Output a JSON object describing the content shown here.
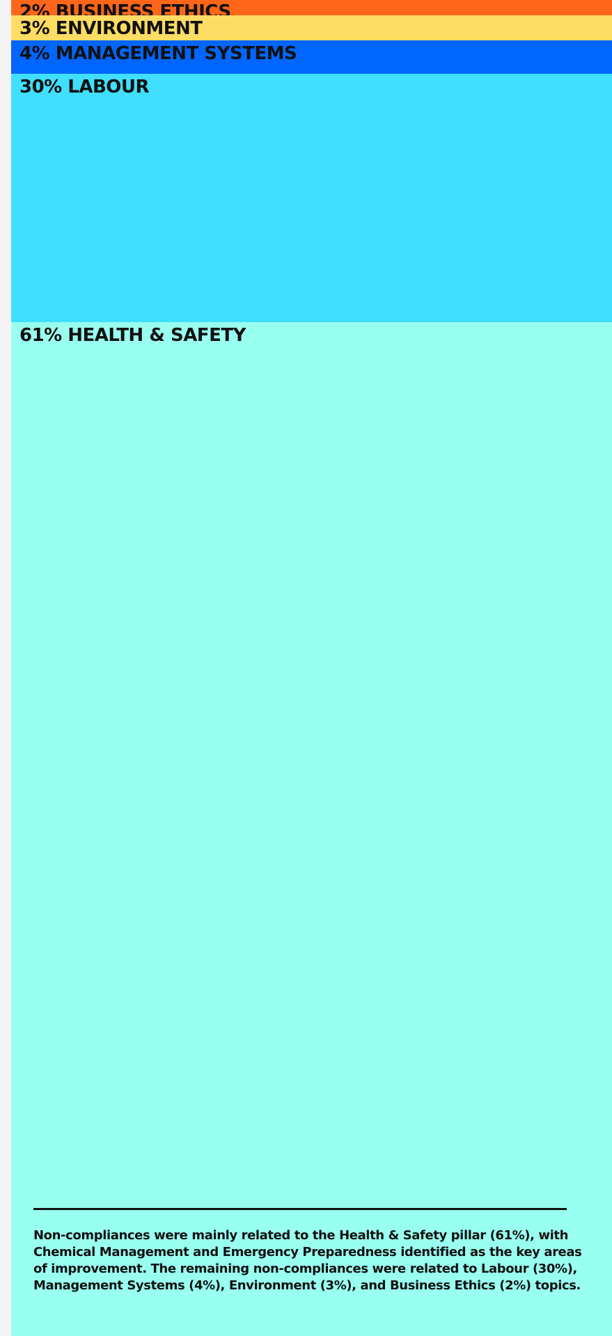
{
  "chart_data": {
    "type": "bar",
    "orientation": "stacked-vertical-blocks",
    "unit": "%",
    "categories": [
      "BUSINESS ETHICS",
      "ENVIRONMENT",
      "MANAGEMENT SYSTEMS",
      "LABOUR",
      "HEALTH & SAFETY"
    ],
    "values": [
      2,
      3,
      4,
      30,
      61
    ],
    "labels": [
      "2% BUSINESS ETHICS",
      "3% ENVIRONMENT",
      "4% MANAGEMENT SYSTEMS",
      "30% LABOUR",
      "61% HEALTH & SAFETY"
    ],
    "colors": [
      "#ff6619",
      "#ffdc63",
      "#0066ff",
      "#40dfff",
      "#99fff0"
    ],
    "title": "",
    "legend": "none",
    "grid": false
  },
  "caption": "Non-compliances were mainly related to the Health & Safety pillar (61%), with Chemical Management and Emergency Preparedness identified as the key areas of improvement. The remaining non-compliances were related to Labour (30%), Management Systems (4%), Environment (3%), and Business Ethics (2%) topics."
}
